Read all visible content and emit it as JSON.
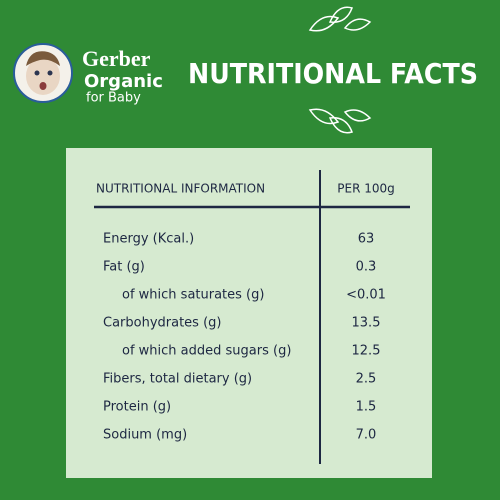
{
  "brand": {
    "name": "Gerber",
    "line1": "Organic",
    "line2": "for Baby"
  },
  "title": "NUTRITIONAL FACTS",
  "table": {
    "header": [
      "NUTRITIONAL INFORMATION",
      "PER 100g"
    ],
    "rows": [
      [
        "Energy (Kcal.)",
        "63"
      ],
      [
        "Fat (g)",
        "0.3"
      ],
      [
        "of which saturates (g)",
        "<0.01"
      ],
      [
        "Carbohydrates (g)",
        "13.5"
      ],
      [
        "of which added sugars (g)",
        "12.5"
      ],
      [
        "Fibers, total dietary (g)",
        "2.5"
      ],
      [
        "Protein (g)",
        "1.5"
      ],
      [
        "Sodium (mg)",
        "7.0"
      ]
    ]
  }
}
